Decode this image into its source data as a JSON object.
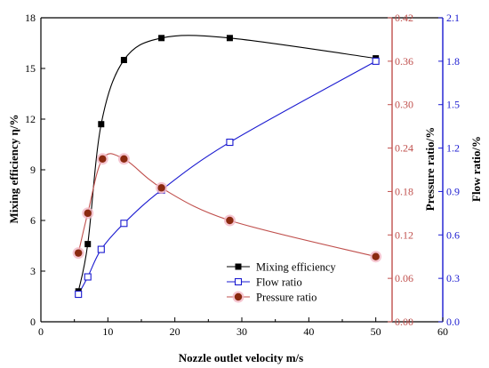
{
  "colors": {
    "mixing": "#000000",
    "flow": "#1a1ad0",
    "pressure": "#c0504d",
    "pressure_marker": "#8b2a10",
    "pressure_halo": "#f2b8c6"
  },
  "chart_data": {
    "type": "line",
    "title": "",
    "xlabel": "Nozzle outlet velocity m/s",
    "xlim": [
      0,
      60
    ],
    "xticks": [
      0,
      10,
      20,
      30,
      40,
      50,
      60
    ],
    "y_left": {
      "label": "Mixing efficiency η/%",
      "lim": [
        0,
        18
      ],
      "ticks": [
        0,
        3,
        6,
        9,
        12,
        15,
        18
      ]
    },
    "y_pressure": {
      "label": "Pressure ratio/%",
      "lim": [
        0,
        0.42
      ],
      "ticks": [
        "0.00",
        "0.06",
        "0.12",
        "0.18",
        "0.24",
        "0.30",
        "0.36",
        "0.42"
      ]
    },
    "y_flow": {
      "label": "Flow ratio/%",
      "lim": [
        0,
        2.1
      ],
      "ticks": [
        "0.0",
        "0.3",
        "0.6",
        "0.9",
        "1.2",
        "1.5",
        "1.8",
        "2.1"
      ]
    },
    "legend_position": "bottom-right",
    "series": [
      {
        "name": "Mixing efficiency",
        "axis": "y_left",
        "marker": "filled-square",
        "x": [
          5.6,
          7.0,
          9.0,
          12.4,
          18.0,
          28.2,
          50.0
        ],
        "y": [
          1.8,
          4.6,
          11.7,
          15.5,
          16.8,
          16.8,
          15.6
        ]
      },
      {
        "name": "Flow ratio",
        "axis": "y_flow",
        "marker": "open-square",
        "x": [
          5.6,
          7.0,
          9.0,
          12.4,
          18.0,
          28.2,
          50.0
        ],
        "y": [
          0.19,
          0.31,
          0.5,
          0.68,
          0.91,
          1.24,
          1.8
        ]
      },
      {
        "name": "Pressure ratio",
        "axis": "y_pressure",
        "marker": "filled-circle",
        "x": [
          5.6,
          7.0,
          9.2,
          12.4,
          18.0,
          28.2,
          50.0
        ],
        "y": [
          0.095,
          0.15,
          0.225,
          0.225,
          0.185,
          0.14,
          0.09
        ]
      }
    ]
  }
}
